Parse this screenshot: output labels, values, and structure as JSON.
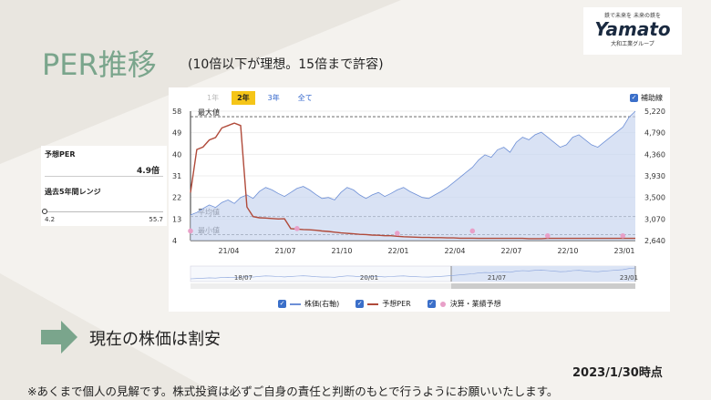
{
  "logo": {
    "top": "鉄で未来を 未来の鉄を",
    "main": "Yamato",
    "sub": "大和工業グループ"
  },
  "title": "PER推移",
  "subtitle": "(10倍以下が理想。15倍まで許容)",
  "panel": {
    "per_label": "予想PER",
    "per_value": "4.9倍",
    "range_label": "過去5年間レンジ",
    "range_min": "4.2",
    "range_max": "55.7",
    "range_position": 0.0
  },
  "tabs": [
    {
      "label": "1年",
      "state": "disabled"
    },
    {
      "label": "2年",
      "state": "active"
    },
    {
      "label": "3年",
      "state": "normal"
    },
    {
      "label": "全て",
      "state": "normal"
    }
  ],
  "assist_label": "補助線",
  "chart_data": {
    "type": "line",
    "y_left_ticks": [
      "58",
      "49",
      "40",
      "31",
      "22",
      "13",
      "4"
    ],
    "y_right_ticks": [
      "5,220",
      "4,790",
      "4,360",
      "3,930",
      "3,500",
      "3,070",
      "2,640"
    ],
    "x_ticks": [
      "21/04",
      "21/07",
      "21/10",
      "22/01",
      "22/04",
      "22/07",
      "22/10",
      "23/01"
    ],
    "ref_labels": {
      "max": "最大値",
      "avg": "平均値",
      "min": "最小値"
    },
    "ylim_left": [
      4,
      58
    ],
    "ylim_right": [
      2640,
      5220
    ],
    "series": [
      {
        "name": "株価(右軸)",
        "axis": "right",
        "color": "#6d8fd6",
        "values": [
          3150,
          3200,
          3280,
          3350,
          3300,
          3400,
          3450,
          3380,
          3500,
          3550,
          3480,
          3620,
          3700,
          3650,
          3580,
          3520,
          3600,
          3680,
          3720,
          3650,
          3560,
          3480,
          3500,
          3450,
          3600,
          3700,
          3650,
          3550,
          3480,
          3550,
          3600,
          3520,
          3580,
          3650,
          3700,
          3620,
          3560,
          3500,
          3480,
          3550,
          3620,
          3700,
          3800,
          3900,
          4000,
          4100,
          4250,
          4350,
          4300,
          4450,
          4500,
          4400,
          4600,
          4700,
          4650,
          4750,
          4800,
          4700,
          4600,
          4500,
          4550,
          4700,
          4750,
          4650,
          4550,
          4500,
          4600,
          4700,
          4800,
          4900,
          5100,
          5220
        ]
      },
      {
        "name": "予想PER",
        "axis": "left",
        "color": "#b04a3a",
        "values": [
          24,
          42,
          43,
          46,
          47,
          51,
          52,
          53,
          52,
          18,
          14,
          13.5,
          13.4,
          13.2,
          13,
          13.1,
          9,
          8.8,
          8.6,
          8.5,
          8.3,
          8,
          7.8,
          7.5,
          7.2,
          7,
          6.8,
          6.6,
          6.5,
          6.3,
          6.2,
          6.0,
          6.0,
          5.8,
          5.6,
          5.5,
          5.4,
          5.3,
          5.3,
          5.2,
          5.2,
          5.1,
          5.1,
          5.0,
          5.0,
          5.0,
          4.9,
          4.9,
          4.9,
          4.9,
          4.9,
          4.9,
          4.9,
          4.9,
          4.8,
          4.8,
          4.8,
          4.9,
          4.9,
          4.9,
          4.9,
          4.9,
          4.9,
          4.9,
          4.9,
          4.9,
          4.9,
          4.9,
          4.9,
          4.9,
          4.9,
          4.9
        ]
      },
      {
        "name": "決算・業績予想",
        "axis": "left",
        "color": "#e8a0c8",
        "points": [
          [
            0,
            8
          ],
          [
            17,
            9
          ],
          [
            33,
            7
          ],
          [
            45,
            8
          ],
          [
            57,
            6
          ],
          [
            69,
            6
          ]
        ]
      }
    ],
    "navigator_labels": [
      "18/07",
      "20/01",
      "21/07",
      "23/01"
    ]
  },
  "legend": [
    {
      "label": "株価(右軸)",
      "color": "#6d8fd6"
    },
    {
      "label": "予想PER",
      "color": "#b04a3a"
    },
    {
      "label": "決算・業績予想",
      "color": "#e8a0c8"
    }
  ],
  "message": "現在の株価は割安",
  "date": "2023/1/30時点",
  "note": "※あくまで個人の見解です。株式投資は必ずご自身の責任と判断のもとで行うようにお願いいたします。"
}
